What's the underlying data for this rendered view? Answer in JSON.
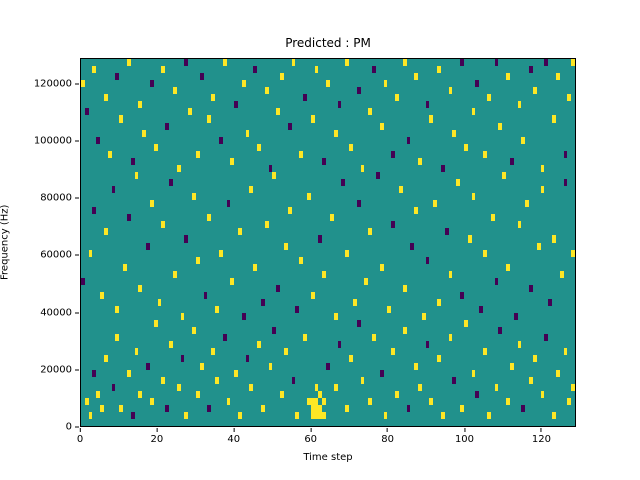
{
  "title": "Predicted : PM",
  "chart_data": {
    "type": "heatmap",
    "title": "Predicted : PM",
    "xlabel": "Time step",
    "ylabel": "Frequency (Hz)",
    "xlim": [
      0,
      129
    ],
    "ylim": [
      0,
      129000
    ],
    "grid_cols": 129,
    "grid_rows": 52,
    "x_ticks": [
      0,
      20,
      40,
      60,
      80,
      100,
      120
    ],
    "y_ticks": [
      0,
      20000,
      40000,
      60000,
      80000,
      100000,
      120000
    ],
    "legend": "none",
    "grid": false,
    "colors": {
      "background": "#21918c",
      "high": "#fde725",
      "low": "#440154",
      "page": "#ffffff",
      "axis": "#000000"
    },
    "value_legend": "cells are [col,row,value]; value 1 = high (yellow), 2 = low (dark purple); background = mid (teal)",
    "cells": [
      [
        1,
        3,
        1
      ],
      [
        2,
        1,
        1
      ],
      [
        3,
        7,
        2
      ],
      [
        4,
        4,
        1
      ],
      [
        5,
        2,
        1
      ],
      [
        6,
        9,
        1
      ],
      [
        8,
        5,
        2
      ],
      [
        9,
        12,
        1
      ],
      [
        10,
        2,
        1
      ],
      [
        12,
        7,
        1
      ],
      [
        13,
        1,
        2
      ],
      [
        14,
        10,
        1
      ],
      [
        15,
        4,
        1
      ],
      [
        17,
        8,
        2
      ],
      [
        18,
        3,
        1
      ],
      [
        19,
        14,
        1
      ],
      [
        21,
        6,
        1
      ],
      [
        22,
        2,
        2
      ],
      [
        23,
        11,
        1
      ],
      [
        25,
        5,
        1
      ],
      [
        26,
        9,
        2
      ],
      [
        27,
        1,
        1
      ],
      [
        29,
        13,
        1
      ],
      [
        30,
        4,
        1
      ],
      [
        31,
        8,
        1
      ],
      [
        33,
        2,
        2
      ],
      [
        34,
        10,
        1
      ],
      [
        35,
        6,
        1
      ],
      [
        37,
        12,
        2
      ],
      [
        38,
        3,
        1
      ],
      [
        40,
        7,
        1
      ],
      [
        41,
        1,
        1
      ],
      [
        43,
        9,
        2
      ],
      [
        44,
        5,
        1
      ],
      [
        46,
        11,
        1
      ],
      [
        47,
        2,
        1
      ],
      [
        49,
        8,
        1
      ],
      [
        50,
        13,
        2
      ],
      [
        52,
        4,
        1
      ],
      [
        53,
        10,
        1
      ],
      [
        55,
        6,
        2
      ],
      [
        56,
        1,
        1
      ],
      [
        58,
        12,
        1
      ],
      [
        59,
        3,
        1
      ],
      [
        60,
        1,
        1
      ],
      [
        60,
        2,
        1
      ],
      [
        60,
        3,
        1
      ],
      [
        61,
        1,
        1
      ],
      [
        61,
        2,
        1
      ],
      [
        61,
        3,
        1
      ],
      [
        61,
        5,
        1
      ],
      [
        62,
        1,
        1
      ],
      [
        62,
        2,
        1
      ],
      [
        62,
        4,
        1
      ],
      [
        63,
        1,
        1
      ],
      [
        63,
        3,
        1
      ],
      [
        64,
        8,
        2
      ],
      [
        66,
        5,
        1
      ],
      [
        67,
        11,
        2
      ],
      [
        69,
        2,
        1
      ],
      [
        70,
        9,
        1
      ],
      [
        72,
        14,
        2
      ],
      [
        73,
        6,
        1
      ],
      [
        75,
        3,
        1
      ],
      [
        76,
        12,
        1
      ],
      [
        78,
        7,
        2
      ],
      [
        79,
        1,
        1
      ],
      [
        81,
        10,
        1
      ],
      [
        82,
        4,
        1
      ],
      [
        84,
        13,
        1
      ],
      [
        85,
        2,
        2
      ],
      [
        87,
        8,
        1
      ],
      [
        88,
        5,
        1
      ],
      [
        90,
        11,
        2
      ],
      [
        91,
        3,
        1
      ],
      [
        93,
        9,
        1
      ],
      [
        94,
        1,
        1
      ],
      [
        96,
        12,
        1
      ],
      [
        97,
        6,
        2
      ],
      [
        99,
        2,
        1
      ],
      [
        100,
        14,
        1
      ],
      [
        102,
        7,
        1
      ],
      [
        103,
        4,
        2
      ],
      [
        105,
        10,
        1
      ],
      [
        106,
        1,
        1
      ],
      [
        108,
        5,
        1
      ],
      [
        109,
        13,
        2
      ],
      [
        111,
        3,
        1
      ],
      [
        112,
        8,
        1
      ],
      [
        114,
        11,
        1
      ],
      [
        115,
        2,
        2
      ],
      [
        117,
        6,
        1
      ],
      [
        118,
        9,
        1
      ],
      [
        120,
        4,
        1
      ],
      [
        121,
        12,
        2
      ],
      [
        123,
        1,
        1
      ],
      [
        124,
        7,
        1
      ],
      [
        126,
        10,
        1
      ],
      [
        127,
        3,
        1
      ],
      [
        128,
        5,
        1
      ],
      [
        0,
        20,
        2
      ],
      [
        2,
        24,
        1
      ],
      [
        3,
        30,
        2
      ],
      [
        5,
        18,
        1
      ],
      [
        6,
        27,
        1
      ],
      [
        8,
        33,
        2
      ],
      [
        9,
        16,
        1
      ],
      [
        11,
        22,
        1
      ],
      [
        12,
        29,
        2
      ],
      [
        14,
        35,
        1
      ],
      [
        15,
        19,
        1
      ],
      [
        17,
        25,
        2
      ],
      [
        18,
        31,
        1
      ],
      [
        20,
        17,
        1
      ],
      [
        21,
        28,
        1
      ],
      [
        23,
        34,
        2
      ],
      [
        24,
        21,
        1
      ],
      [
        26,
        15,
        1
      ],
      [
        27,
        26,
        2
      ],
      [
        29,
        32,
        1
      ],
      [
        30,
        23,
        1
      ],
      [
        32,
        18,
        2
      ],
      [
        33,
        29,
        1
      ],
      [
        35,
        16,
        1
      ],
      [
        36,
        24,
        1
      ],
      [
        38,
        31,
        2
      ],
      [
        39,
        20,
        1
      ],
      [
        41,
        27,
        1
      ],
      [
        42,
        15,
        2
      ],
      [
        44,
        33,
        1
      ],
      [
        45,
        22,
        1
      ],
      [
        47,
        17,
        2
      ],
      [
        48,
        28,
        1
      ],
      [
        50,
        35,
        1
      ],
      [
        51,
        19,
        2
      ],
      [
        53,
        25,
        1
      ],
      [
        54,
        30,
        1
      ],
      [
        56,
        16,
        2
      ],
      [
        57,
        23,
        1
      ],
      [
        59,
        32,
        1
      ],
      [
        60,
        18,
        1
      ],
      [
        62,
        26,
        2
      ],
      [
        63,
        21,
        1
      ],
      [
        65,
        29,
        1
      ],
      [
        66,
        15,
        1
      ],
      [
        68,
        34,
        2
      ],
      [
        69,
        24,
        1
      ],
      [
        71,
        17,
        1
      ],
      [
        72,
        31,
        2
      ],
      [
        74,
        20,
        1
      ],
      [
        75,
        27,
        1
      ],
      [
        77,
        35,
        2
      ],
      [
        78,
        22,
        1
      ],
      [
        80,
        16,
        1
      ],
      [
        81,
        28,
        2
      ],
      [
        83,
        33,
        1
      ],
      [
        84,
        19,
        1
      ],
      [
        86,
        25,
        2
      ],
      [
        87,
        30,
        1
      ],
      [
        89,
        15,
        1
      ],
      [
        90,
        23,
        2
      ],
      [
        92,
        31,
        1
      ],
      [
        93,
        17,
        1
      ],
      [
        95,
        27,
        2
      ],
      [
        96,
        21,
        1
      ],
      [
        98,
        34,
        1
      ],
      [
        99,
        18,
        2
      ],
      [
        101,
        26,
        1
      ],
      [
        102,
        32,
        1
      ],
      [
        104,
        16,
        2
      ],
      [
        105,
        24,
        1
      ],
      [
        107,
        29,
        1
      ],
      [
        108,
        20,
        2
      ],
      [
        110,
        35,
        1
      ],
      [
        111,
        22,
        1
      ],
      [
        113,
        15,
        2
      ],
      [
        114,
        28,
        1
      ],
      [
        116,
        31,
        1
      ],
      [
        117,
        19,
        2
      ],
      [
        119,
        25,
        1
      ],
      [
        120,
        33,
        1
      ],
      [
        122,
        17,
        2
      ],
      [
        123,
        26,
        1
      ],
      [
        125,
        21,
        1
      ],
      [
        126,
        34,
        2
      ],
      [
        128,
        24,
        1
      ],
      [
        0,
        48,
        1
      ],
      [
        1,
        44,
        2
      ],
      [
        3,
        50,
        1
      ],
      [
        4,
        40,
        2
      ],
      [
        6,
        46,
        1
      ],
      [
        7,
        38,
        1
      ],
      [
        9,
        49,
        2
      ],
      [
        10,
        43,
        1
      ],
      [
        12,
        51,
        1
      ],
      [
        13,
        37,
        2
      ],
      [
        15,
        45,
        1
      ],
      [
        16,
        41,
        1
      ],
      [
        18,
        48,
        2
      ],
      [
        19,
        39,
        1
      ],
      [
        21,
        50,
        1
      ],
      [
        22,
        42,
        2
      ],
      [
        24,
        47,
        1
      ],
      [
        25,
        36,
        1
      ],
      [
        27,
        51,
        2
      ],
      [
        28,
        44,
        1
      ],
      [
        30,
        38,
        1
      ],
      [
        31,
        49,
        2
      ],
      [
        33,
        43,
        1
      ],
      [
        34,
        46,
        1
      ],
      [
        36,
        40,
        2
      ],
      [
        37,
        51,
        1
      ],
      [
        39,
        37,
        1
      ],
      [
        40,
        45,
        2
      ],
      [
        42,
        48,
        1
      ],
      [
        43,
        41,
        1
      ],
      [
        45,
        50,
        2
      ],
      [
        46,
        39,
        1
      ],
      [
        48,
        47,
        1
      ],
      [
        49,
        36,
        2
      ],
      [
        51,
        44,
        1
      ],
      [
        52,
        49,
        1
      ],
      [
        54,
        42,
        2
      ],
      [
        55,
        51,
        1
      ],
      [
        57,
        38,
        1
      ],
      [
        58,
        46,
        2
      ],
      [
        60,
        43,
        1
      ],
      [
        61,
        50,
        1
      ],
      [
        63,
        37,
        2
      ],
      [
        64,
        48,
        1
      ],
      [
        66,
        41,
        1
      ],
      [
        67,
        45,
        2
      ],
      [
        69,
        51,
        1
      ],
      [
        70,
        39,
        1
      ],
      [
        72,
        47,
        2
      ],
      [
        73,
        36,
        1
      ],
      [
        75,
        44,
        1
      ],
      [
        76,
        50,
        2
      ],
      [
        78,
        42,
        1
      ],
      [
        79,
        48,
        1
      ],
      [
        81,
        38,
        2
      ],
      [
        82,
        46,
        1
      ],
      [
        84,
        51,
        1
      ],
      [
        85,
        40,
        2
      ],
      [
        87,
        49,
        1
      ],
      [
        88,
        37,
        1
      ],
      [
        90,
        45,
        2
      ],
      [
        91,
        43,
        1
      ],
      [
        93,
        50,
        1
      ],
      [
        94,
        36,
        2
      ],
      [
        96,
        47,
        1
      ],
      [
        97,
        41,
        1
      ],
      [
        99,
        51,
        2
      ],
      [
        100,
        39,
        1
      ],
      [
        102,
        44,
        1
      ],
      [
        103,
        48,
        2
      ],
      [
        105,
        38,
        1
      ],
      [
        106,
        46,
        1
      ],
      [
        108,
        51,
        2
      ],
      [
        109,
        42,
        1
      ],
      [
        111,
        49,
        1
      ],
      [
        112,
        37,
        2
      ],
      [
        114,
        45,
        1
      ],
      [
        115,
        40,
        1
      ],
      [
        117,
        50,
        2
      ],
      [
        118,
        47,
        1
      ],
      [
        120,
        36,
        1
      ],
      [
        121,
        51,
        2
      ],
      [
        123,
        43,
        1
      ],
      [
        124,
        49,
        1
      ],
      [
        126,
        38,
        2
      ],
      [
        127,
        46,
        1
      ],
      [
        128,
        51,
        1
      ]
    ]
  }
}
